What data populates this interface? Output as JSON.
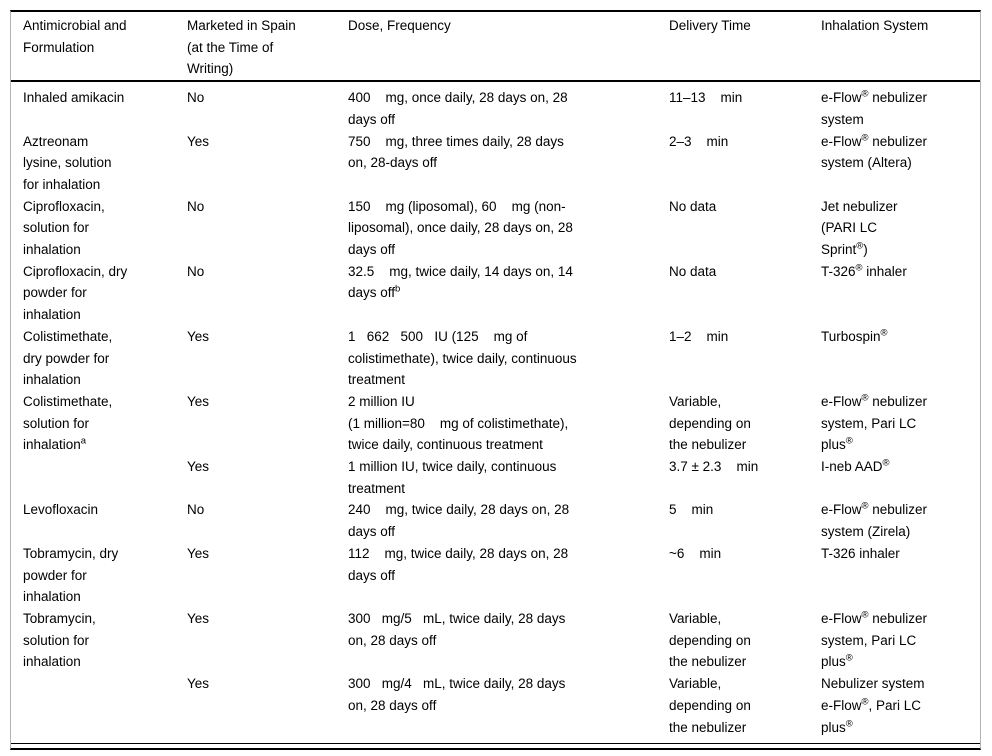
{
  "colors": {
    "background": "#ffffff",
    "text": "#000000",
    "rule": "#000000",
    "frame_line": "#b4b4b4"
  },
  "table": {
    "columns": [
      {
        "label": "Antimicrobial and\nFormulation"
      },
      {
        "label": "Marketed in Spain\n(at the Time of\nWriting)"
      },
      {
        "label": "Dose, Frequency"
      },
      {
        "label": "Delivery Time"
      },
      {
        "label": "Inhalation System"
      }
    ],
    "rows": [
      {
        "antimicrobial": "Inhaled amikacin",
        "marketed": "No",
        "dose": "400    mg, once daily, 28 days on, 28\ndays off",
        "delivery": "11–13    min",
        "system": "e-Flow® nebulizer\nsystem"
      },
      {
        "antimicrobial": "Aztreonam\nlysine, solution\nfor inhalation",
        "marketed": "Yes",
        "dose": "750    mg, three times daily, 28 days\non, 28-days off",
        "delivery": "2–3    min",
        "system": "e-Flow® nebulizer\nsystem (Altera)"
      },
      {
        "antimicrobial": "Ciprofloxacin,\nsolution for\ninhalation",
        "marketed": "No",
        "dose": "150    mg (liposomal), 60    mg (non-\nliposomal), once daily, 28 days on, 28\ndays off",
        "delivery": "No data",
        "system": "Jet nebulizer\n(PARI LC\nSprint®)"
      },
      {
        "antimicrobial": "Ciprofloxacin, dry\npowder for\ninhalation",
        "marketed": "No",
        "dose": "32.5    mg, twice daily, 14 days on, 14\ndays off^b",
        "delivery": "No data",
        "system": "T-326® inhaler"
      },
      {
        "antimicrobial": "Colistimethate,\ndry powder for\ninhalation",
        "marketed": "Yes",
        "dose": "1   662   500   IU (125    mg of\ncolistimethate), twice daily, continuous\ntreatment",
        "delivery": "1–2    min",
        "system": "Turbospin®"
      },
      {
        "antimicrobial": "Colistimethate,\nsolution for\ninhalation^a",
        "marketed": "Yes",
        "dose": "2 million IU\n(1 million=80    mg of colistimethate),\ntwice daily, continuous treatment",
        "delivery": "Variable,\ndepending on\nthe nebulizer",
        "system": "e-Flow® nebulizer\nsystem, Pari LC\nplus®"
      },
      {
        "antimicrobial": "",
        "marketed": "Yes",
        "dose": "1 million IU, twice daily, continuous\ntreatment",
        "delivery": "3.7 ± 2.3    min",
        "system": "I-neb AAD®"
      },
      {
        "antimicrobial": "Levofloxacin",
        "marketed": "No",
        "dose": "240    mg, twice daily, 28 days on, 28\ndays off",
        "delivery": "5    min",
        "system": "e-Flow® nebulizer\nsystem (Zirela)"
      },
      {
        "antimicrobial": "Tobramycin, dry\npowder for\ninhalation",
        "marketed": "Yes",
        "dose": "112    mg, twice daily, 28 days on, 28\ndays off",
        "delivery": "~6    min",
        "system": "T-326 inhaler"
      },
      {
        "antimicrobial": "Tobramycin,\nsolution for\ninhalation",
        "marketed": "Yes",
        "dose": "300   mg/5   mL, twice daily, 28 days\non, 28 days off",
        "delivery": "Variable,\ndepending on\nthe nebulizer",
        "system": "e-Flow® nebulizer\nsystem, Pari LC\nplus®"
      },
      {
        "antimicrobial": "",
        "marketed": "Yes",
        "dose": "300   mg/4   mL, twice daily, 28 days\non, 28 days off",
        "delivery": "Variable,\ndepending on\nthe nebulizer",
        "system": "Nebulizer system\ne-Flow®, Pari LC\nplus®"
      }
    ]
  }
}
